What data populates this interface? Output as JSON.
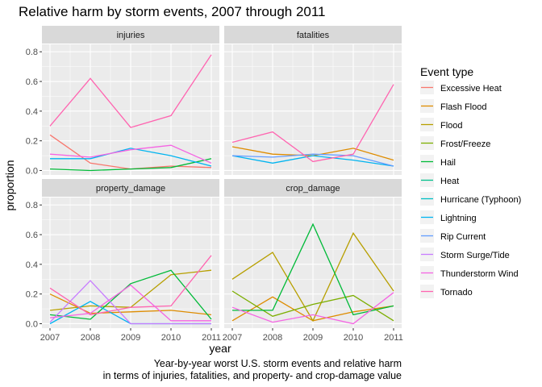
{
  "chart_data": {
    "type": "line",
    "title": "Relative harm by storm events, 2007 through 2011",
    "xlabel": "year",
    "ylabel": "proportion",
    "caption_lines": [
      "Year-by-year worst U.S. storm events and relative harm",
      "in terms of injuries, fatalities, and property- and crop-damage value"
    ],
    "x": [
      2007,
      2008,
      2009,
      2010,
      2011
    ],
    "x_tick_labels": [
      "2007",
      "2008",
      "2009",
      "2010",
      "2011"
    ],
    "ylim": [
      -0.03,
      0.85
    ],
    "y_ticks": [
      0.0,
      0.2,
      0.4,
      0.6,
      0.8
    ],
    "y_tick_labels": [
      "0.0",
      "0.2",
      "0.4",
      "0.6",
      "0.8"
    ],
    "grid": true,
    "legend_title": "Event type",
    "legend_position": "right",
    "legend": [
      {
        "name": "Excessive Heat",
        "color": "#F8766D"
      },
      {
        "name": "Flash Flood",
        "color": "#DE8C00"
      },
      {
        "name": "Flood",
        "color": "#B79F00"
      },
      {
        "name": "Frost/Freeze",
        "color": "#7CAE00"
      },
      {
        "name": "Hail",
        "color": "#00BA38"
      },
      {
        "name": "Heat",
        "color": "#00C08B"
      },
      {
        "name": "Hurricane (Typhoon)",
        "color": "#00BFC4"
      },
      {
        "name": "Lightning",
        "color": "#00B4F0"
      },
      {
        "name": "Rip Current",
        "color": "#619CFF"
      },
      {
        "name": "Storm Surge/Tide",
        "color": "#C77CFF"
      },
      {
        "name": "Thunderstorm Wind",
        "color": "#F564E3"
      },
      {
        "name": "Tornado",
        "color": "#FF64B0"
      }
    ],
    "panels": [
      {
        "label": "injuries",
        "series": [
          {
            "name": "Excessive Heat",
            "color": "#F8766D",
            "values": [
              0.24,
              0.05,
              0.01,
              0.03,
              0.02
            ]
          },
          {
            "name": "Hail",
            "color": "#00BA38",
            "values": [
              0.01,
              0.0,
              0.01,
              0.02,
              0.08
            ]
          },
          {
            "name": "Lightning",
            "color": "#00B4F0",
            "values": [
              0.08,
              0.08,
              0.15,
              0.1,
              0.03
            ]
          },
          {
            "name": "Thunderstorm Wind",
            "color": "#F564E3",
            "values": [
              0.11,
              0.09,
              0.14,
              0.17,
              0.05
            ]
          },
          {
            "name": "Tornado",
            "color": "#FF64B0",
            "values": [
              0.3,
              0.62,
              0.29,
              0.37,
              0.78
            ]
          }
        ]
      },
      {
        "label": "fatalities",
        "series": [
          {
            "name": "Flash Flood",
            "color": "#DE8C00",
            "values": [
              0.16,
              0.11,
              0.1,
              0.15,
              0.07
            ]
          },
          {
            "name": "Lightning",
            "color": "#00B4F0",
            "values": [
              0.1,
              0.05,
              0.1,
              0.07,
              0.03
            ]
          },
          {
            "name": "Rip Current",
            "color": "#619CFF",
            "values": [
              0.1,
              0.09,
              0.11,
              0.1,
              0.03
            ]
          },
          {
            "name": "Tornado",
            "color": "#FF64B0",
            "values": [
              0.19,
              0.26,
              0.06,
              0.11,
              0.58
            ]
          }
        ]
      },
      {
        "label": "property_damage",
        "series": [
          {
            "name": "Flash Flood",
            "color": "#DE8C00",
            "values": [
              0.2,
              0.07,
              0.08,
              0.09,
              0.06
            ]
          },
          {
            "name": "Flood",
            "color": "#B79F00",
            "values": [
              0.09,
              0.12,
              0.11,
              0.33,
              0.36
            ]
          },
          {
            "name": "Hail",
            "color": "#00BA38",
            "values": [
              0.06,
              0.03,
              0.27,
              0.36,
              0.03
            ]
          },
          {
            "name": "Lightning",
            "color": "#00B4F0",
            "values": [
              0.0,
              0.15,
              0.0,
              0.0,
              0.0
            ]
          },
          {
            "name": "Storm Surge/Tide",
            "color": "#C77CFF",
            "values": [
              0.01,
              0.29,
              0.0,
              0.0,
              0.0
            ]
          },
          {
            "name": "Tornado",
            "color": "#FF64B0",
            "values": [
              0.24,
              0.06,
              0.11,
              0.12,
              0.46
            ]
          },
          {
            "name": "Thunderstorm Wind",
            "color": "#F564E3",
            "values": [
              0.04,
              0.07,
              0.26,
              0.02,
              0.02
            ]
          }
        ]
      },
      {
        "label": "crop_damage",
        "series": [
          {
            "name": "Flash Flood",
            "color": "#DE8C00",
            "values": [
              0.02,
              0.18,
              0.02,
              0.08,
              0.12
            ]
          },
          {
            "name": "Flood",
            "color": "#B79F00",
            "values": [
              0.3,
              0.48,
              0.02,
              0.61,
              0.22
            ]
          },
          {
            "name": "Frost/Freeze",
            "color": "#7CAE00",
            "values": [
              0.22,
              0.05,
              0.13,
              0.19,
              0.02
            ]
          },
          {
            "name": "Hail",
            "color": "#00BA38",
            "values": [
              0.09,
              0.09,
              0.67,
              0.06,
              0.12
            ]
          },
          {
            "name": "Thunderstorm Wind",
            "color": "#F564E3",
            "values": [
              0.11,
              0.01,
              0.06,
              0.0,
              0.21
            ]
          }
        ]
      }
    ]
  }
}
